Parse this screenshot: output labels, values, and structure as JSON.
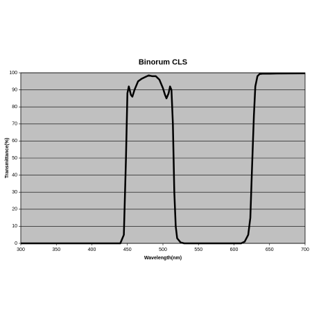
{
  "chart_data": {
    "type": "line",
    "title": "Binorum CLS",
    "x_label": "Wavelength(nm)",
    "y_label": "Transmittance(%)",
    "x": [
      300,
      440,
      445,
      448,
      450,
      452,
      455,
      457,
      460,
      465,
      470,
      475,
      480,
      485,
      490,
      495,
      500,
      503,
      505,
      508,
      510,
      512,
      514,
      516,
      518,
      520,
      525,
      530,
      610,
      615,
      620,
      623,
      625,
      628,
      630,
      633,
      636,
      640,
      650,
      660,
      700
    ],
    "series": [
      {
        "color": "#000000",
        "values": [
          0,
          0,
          5,
          50,
          88,
          92,
          87,
          86,
          90,
          95,
          96.5,
          97.5,
          98.5,
          98,
          98,
          96,
          91,
          87,
          85,
          88,
          92,
          90,
          70,
          30,
          10,
          3,
          0.5,
          0,
          0,
          1,
          5,
          15,
          40,
          75,
          92,
          98,
          99.3,
          99.5,
          99.5,
          99.6,
          99.7
        ]
      }
    ],
    "xlim": [
      300,
      700
    ],
    "xticks": [
      300,
      350,
      400,
      450,
      500,
      550,
      600,
      650,
      700
    ],
    "ylim": [
      0,
      100
    ],
    "yticks": [
      0,
      10,
      20,
      30,
      40,
      50,
      60,
      70,
      80,
      90,
      100
    ],
    "grid": true,
    "plot_background": "#c0c0c0"
  }
}
